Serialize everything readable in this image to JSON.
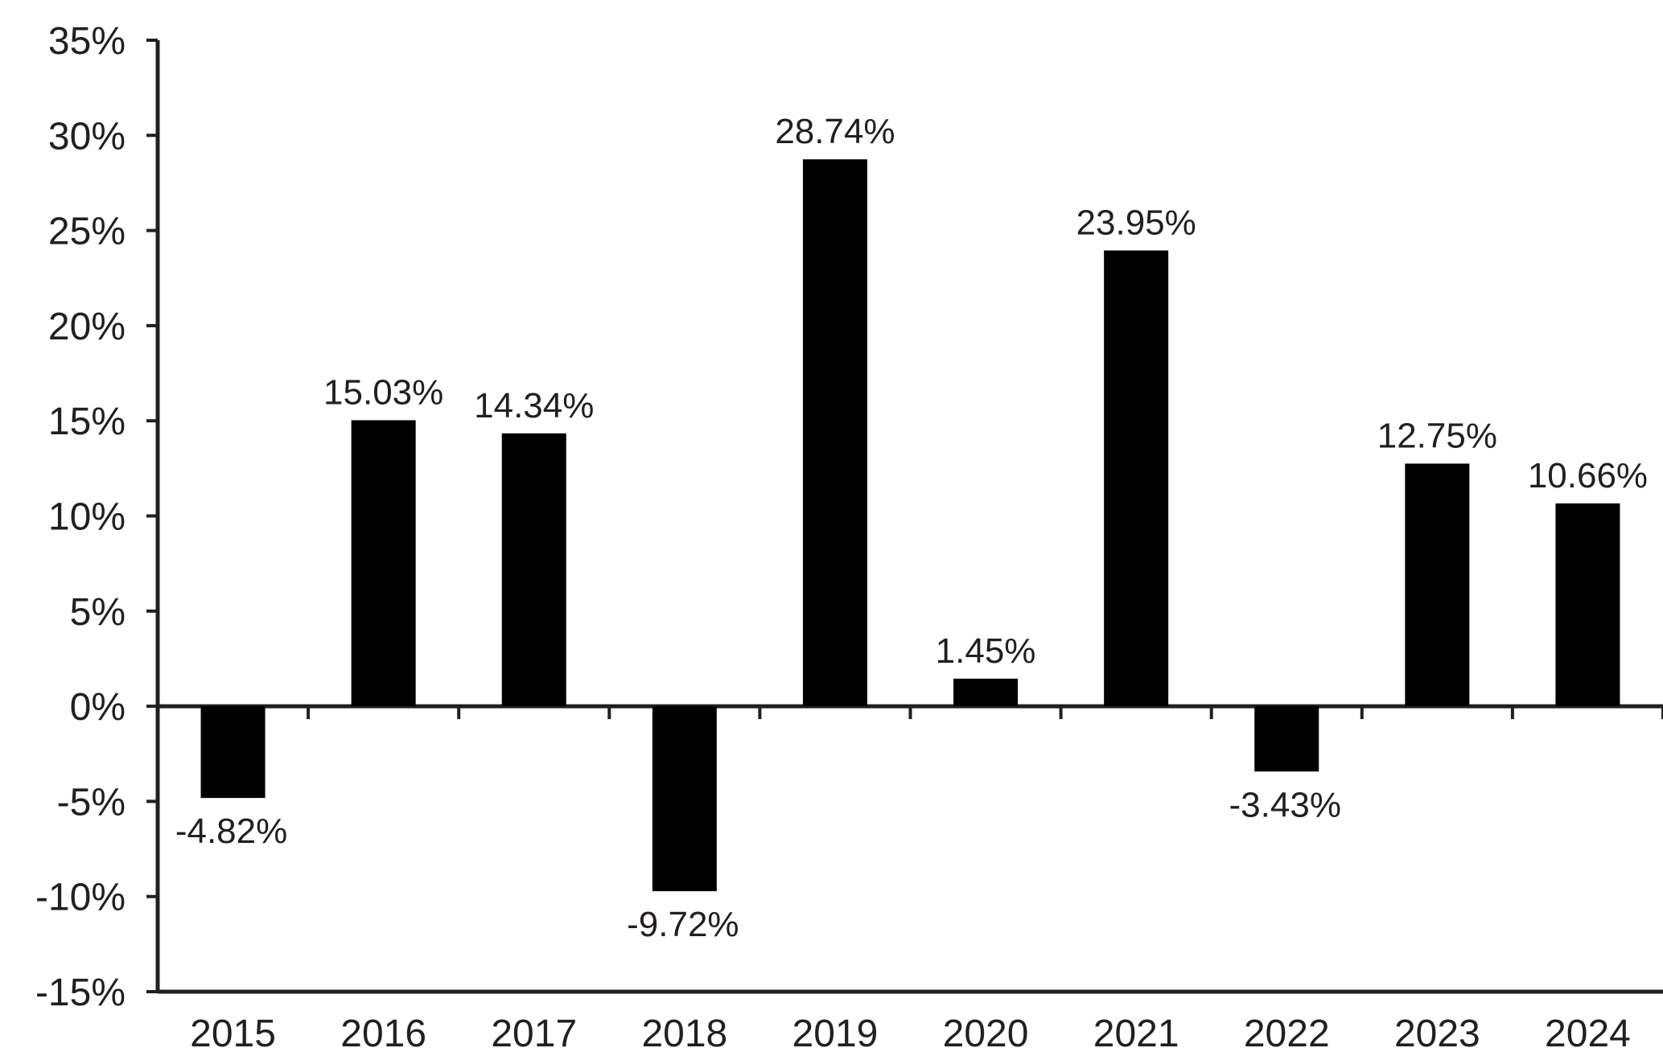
{
  "chart_data": {
    "type": "bar",
    "categories": [
      "2015",
      "2016",
      "2017",
      "2018",
      "2019",
      "2020",
      "2021",
      "2022",
      "2023",
      "2024"
    ],
    "values": [
      -4.82,
      15.03,
      14.34,
      -9.72,
      28.74,
      1.45,
      23.95,
      -3.43,
      12.75,
      10.66
    ],
    "data_labels": [
      "-4.82%",
      "15.03%",
      "14.34%",
      "-9.72%",
      "28.74%",
      "1.45%",
      "23.95%",
      "-3.43%",
      "12.75%",
      "10.66%"
    ],
    "ylim": [
      -15,
      35
    ],
    "ytick_values": [
      35,
      30,
      25,
      20,
      15,
      10,
      5,
      0,
      -5,
      -10,
      -15
    ],
    "ytick_labels": [
      "35%",
      "30%",
      "25%",
      "20%",
      "15%",
      "10%",
      "5%",
      "0%",
      "-5%",
      "-10%",
      "-15%"
    ],
    "grid": false,
    "colors": {
      "bar": "#000000",
      "axis": "#231f20",
      "text": "#231f20"
    }
  }
}
